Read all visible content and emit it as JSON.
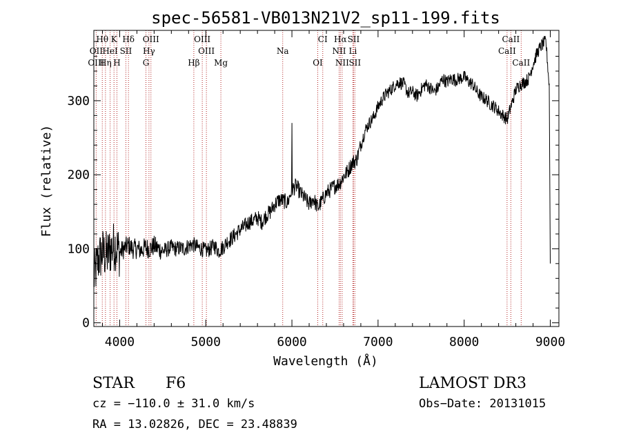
{
  "chart_data": {
    "type": "line",
    "title": "spec-56581-VB013N21V2_sp11-199.fits",
    "xlabel": "Wavelength (Å)",
    "ylabel": "Flux (relative)",
    "xlim": [
      3700,
      9100
    ],
    "ylim": [
      -5,
      395
    ],
    "xticks": [
      4000,
      5000,
      6000,
      7000,
      8000,
      9000
    ],
    "yticks": [
      0,
      100,
      200,
      300
    ],
    "xtick_labels": [
      "4000",
      "5000",
      "6000",
      "7000",
      "8000",
      "9000"
    ],
    "ytick_labels": [
      "0",
      "100",
      "200",
      "300"
    ],
    "line_color": "#000000",
    "marker_color": "#b22222",
    "series": [
      {
        "name": "flux",
        "x": [
          3700,
          3750,
          3800,
          3850,
          3900,
          3950,
          4000,
          4050,
          4100,
          4150,
          4200,
          4250,
          4300,
          4350,
          4400,
          4450,
          4500,
          4550,
          4600,
          4650,
          4700,
          4750,
          4800,
          4850,
          4900,
          4950,
          5000,
          5050,
          5100,
          5150,
          5200,
          5250,
          5300,
          5350,
          5400,
          5450,
          5500,
          5550,
          5600,
          5650,
          5700,
          5750,
          5800,
          5850,
          5900,
          5950,
          6000,
          6050,
          6100,
          6150,
          6200,
          6250,
          6300,
          6350,
          6400,
          6450,
          6500,
          6550,
          6600,
          6650,
          6700,
          6750,
          6800,
          6850,
          6900,
          6950,
          7000,
          7050,
          7100,
          7150,
          7200,
          7250,
          7300,
          7350,
          7400,
          7450,
          7500,
          7550,
          7600,
          7650,
          7700,
          7750,
          7800,
          7850,
          7900,
          7950,
          8000,
          8050,
          8100,
          8150,
          8200,
          8250,
          8300,
          8350,
          8400,
          8450,
          8500,
          8550,
          8600,
          8650,
          8700,
          8750,
          8800,
          8850,
          8900,
          8950,
          9000
        ],
        "values": [
          60,
          85,
          95,
          90,
          100,
          105,
          95,
          100,
          105,
          100,
          100,
          98,
          102,
          100,
          104,
          100,
          97,
          99,
          102,
          100,
          101,
          100,
          104,
          106,
          102,
          100,
          97,
          100,
          104,
          97,
          102,
          110,
          114,
          120,
          126,
          130,
          136,
          138,
          142,
          136,
          145,
          150,
          160,
          166,
          165,
          162,
          180,
          185,
          175,
          168,
          160,
          168,
          155,
          165,
          175,
          180,
          185,
          188,
          198,
          205,
          216,
          220,
          240,
          260,
          270,
          278,
          292,
          302,
          310,
          315,
          322,
          325,
          322,
          310,
          312,
          306,
          315,
          322,
          318,
          312,
          318,
          330,
          325,
          330,
          328,
          330,
          332,
          326,
          322,
          312,
          305,
          302,
          296,
          292,
          286,
          280,
          275,
          295,
          315,
          322,
          325,
          330,
          350,
          365,
          375,
          380,
          300
        ]
      }
    ],
    "annotations": [
      {
        "label": "Hθ",
        "wavelength": 3798,
        "row": 1
      },
      {
        "label": "K",
        "wavelength": 3934,
        "row": 1
      },
      {
        "label": "Hδ",
        "wavelength": 4102,
        "row": 1
      },
      {
        "label": "OIII",
        "wavelength": 4363,
        "row": 1
      },
      {
        "label": "OIII",
        "wavelength": 4959,
        "row": 1
      },
      {
        "label": "CI",
        "wavelength": 6358,
        "row": 1
      },
      {
        "label": "Hα",
        "wavelength": 6563,
        "row": 1
      },
      {
        "label": "SII",
        "wavelength": 6716,
        "row": 1
      },
      {
        "label": "CaII",
        "wavelength": 8542,
        "row": 1
      },
      {
        "label": "OII",
        "wavelength": 3727,
        "row": 2
      },
      {
        "label": "HeI",
        "wavelength": 3889,
        "row": 2
      },
      {
        "label": "SII",
        "wavelength": 4072,
        "row": 2
      },
      {
        "label": "Hγ",
        "wavelength": 4340,
        "row": 2
      },
      {
        "label": "OIII",
        "wavelength": 5007,
        "row": 2
      },
      {
        "label": "Na",
        "wavelength": 5893,
        "row": 2
      },
      {
        "label": "NII",
        "wavelength": 6548,
        "row": 2
      },
      {
        "label": "Li",
        "wavelength": 6708,
        "row": 2
      },
      {
        "label": "CaII",
        "wavelength": 8498,
        "row": 2
      },
      {
        "label": "OIII",
        "wavelength": 3727,
        "row": 3
      },
      {
        "label": "Hη",
        "wavelength": 3835,
        "row": 3
      },
      {
        "label": "H",
        "wavelength": 3968,
        "row": 3
      },
      {
        "label": "G",
        "wavelength": 4305,
        "row": 3
      },
      {
        "label": "Hβ",
        "wavelength": 4861,
        "row": 3
      },
      {
        "label": "Mg",
        "wavelength": 5175,
        "row": 3
      },
      {
        "label": "OI",
        "wavelength": 6300,
        "row": 3
      },
      {
        "label": "NII",
        "wavelength": 6583,
        "row": 3
      },
      {
        "label": "SII",
        "wavelength": 6731,
        "row": 3
      },
      {
        "label": "CaII",
        "wavelength": 8662,
        "row": 3
      }
    ],
    "line_markers": [
      3727,
      3798,
      3835,
      3889,
      3934,
      3968,
      4072,
      4102,
      4305,
      4340,
      4363,
      4861,
      4959,
      5007,
      5175,
      5893,
      6300,
      6358,
      6548,
      6563,
      6583,
      6708,
      6716,
      6731,
      8498,
      8542,
      8662
    ]
  },
  "info": {
    "object_class": "STAR",
    "subclass": "F6",
    "survey": "LAMOST DR3",
    "redshift": "cz = −110.0 ± 31.0 km/s",
    "obs_date": "Obs−Date: 20131015",
    "coords": "RA =  13.02826, DEC =  23.48839"
  }
}
